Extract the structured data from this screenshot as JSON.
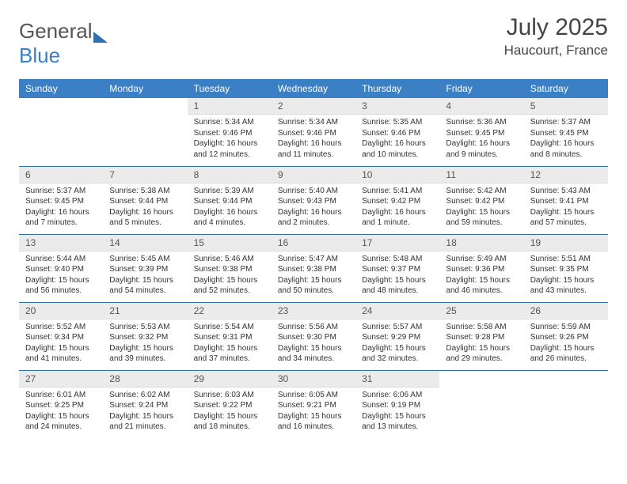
{
  "brand": {
    "part1": "General",
    "part2": "Blue"
  },
  "title": "July 2025",
  "location": "Haucourt, France",
  "colors": {
    "header_bg": "#3b7fc4",
    "header_text": "#ffffff",
    "daynum_bg": "#ebebeb",
    "row_border": "#2f6fb3",
    "body_text": "#333333",
    "title_text": "#444444"
  },
  "dayNames": [
    "Sunday",
    "Monday",
    "Tuesday",
    "Wednesday",
    "Thursday",
    "Friday",
    "Saturday"
  ],
  "startOffset": 2,
  "days": [
    {
      "n": 1,
      "sunrise": "5:34 AM",
      "sunset": "9:46 PM",
      "daylight": "16 hours and 12 minutes."
    },
    {
      "n": 2,
      "sunrise": "5:34 AM",
      "sunset": "9:46 PM",
      "daylight": "16 hours and 11 minutes."
    },
    {
      "n": 3,
      "sunrise": "5:35 AM",
      "sunset": "9:46 PM",
      "daylight": "16 hours and 10 minutes."
    },
    {
      "n": 4,
      "sunrise": "5:36 AM",
      "sunset": "9:45 PM",
      "daylight": "16 hours and 9 minutes."
    },
    {
      "n": 5,
      "sunrise": "5:37 AM",
      "sunset": "9:45 PM",
      "daylight": "16 hours and 8 minutes."
    },
    {
      "n": 6,
      "sunrise": "5:37 AM",
      "sunset": "9:45 PM",
      "daylight": "16 hours and 7 minutes."
    },
    {
      "n": 7,
      "sunrise": "5:38 AM",
      "sunset": "9:44 PM",
      "daylight": "16 hours and 5 minutes."
    },
    {
      "n": 8,
      "sunrise": "5:39 AM",
      "sunset": "9:44 PM",
      "daylight": "16 hours and 4 minutes."
    },
    {
      "n": 9,
      "sunrise": "5:40 AM",
      "sunset": "9:43 PM",
      "daylight": "16 hours and 2 minutes."
    },
    {
      "n": 10,
      "sunrise": "5:41 AM",
      "sunset": "9:42 PM",
      "daylight": "16 hours and 1 minute."
    },
    {
      "n": 11,
      "sunrise": "5:42 AM",
      "sunset": "9:42 PM",
      "daylight": "15 hours and 59 minutes."
    },
    {
      "n": 12,
      "sunrise": "5:43 AM",
      "sunset": "9:41 PM",
      "daylight": "15 hours and 57 minutes."
    },
    {
      "n": 13,
      "sunrise": "5:44 AM",
      "sunset": "9:40 PM",
      "daylight": "15 hours and 56 minutes."
    },
    {
      "n": 14,
      "sunrise": "5:45 AM",
      "sunset": "9:39 PM",
      "daylight": "15 hours and 54 minutes."
    },
    {
      "n": 15,
      "sunrise": "5:46 AM",
      "sunset": "9:38 PM",
      "daylight": "15 hours and 52 minutes."
    },
    {
      "n": 16,
      "sunrise": "5:47 AM",
      "sunset": "9:38 PM",
      "daylight": "15 hours and 50 minutes."
    },
    {
      "n": 17,
      "sunrise": "5:48 AM",
      "sunset": "9:37 PM",
      "daylight": "15 hours and 48 minutes."
    },
    {
      "n": 18,
      "sunrise": "5:49 AM",
      "sunset": "9:36 PM",
      "daylight": "15 hours and 46 minutes."
    },
    {
      "n": 19,
      "sunrise": "5:51 AM",
      "sunset": "9:35 PM",
      "daylight": "15 hours and 43 minutes."
    },
    {
      "n": 20,
      "sunrise": "5:52 AM",
      "sunset": "9:34 PM",
      "daylight": "15 hours and 41 minutes."
    },
    {
      "n": 21,
      "sunrise": "5:53 AM",
      "sunset": "9:32 PM",
      "daylight": "15 hours and 39 minutes."
    },
    {
      "n": 22,
      "sunrise": "5:54 AM",
      "sunset": "9:31 PM",
      "daylight": "15 hours and 37 minutes."
    },
    {
      "n": 23,
      "sunrise": "5:56 AM",
      "sunset": "9:30 PM",
      "daylight": "15 hours and 34 minutes."
    },
    {
      "n": 24,
      "sunrise": "5:57 AM",
      "sunset": "9:29 PM",
      "daylight": "15 hours and 32 minutes."
    },
    {
      "n": 25,
      "sunrise": "5:58 AM",
      "sunset": "9:28 PM",
      "daylight": "15 hours and 29 minutes."
    },
    {
      "n": 26,
      "sunrise": "5:59 AM",
      "sunset": "9:26 PM",
      "daylight": "15 hours and 26 minutes."
    },
    {
      "n": 27,
      "sunrise": "6:01 AM",
      "sunset": "9:25 PM",
      "daylight": "15 hours and 24 minutes."
    },
    {
      "n": 28,
      "sunrise": "6:02 AM",
      "sunset": "9:24 PM",
      "daylight": "15 hours and 21 minutes."
    },
    {
      "n": 29,
      "sunrise": "6:03 AM",
      "sunset": "9:22 PM",
      "daylight": "15 hours and 18 minutes."
    },
    {
      "n": 30,
      "sunrise": "6:05 AM",
      "sunset": "9:21 PM",
      "daylight": "15 hours and 16 minutes."
    },
    {
      "n": 31,
      "sunrise": "6:06 AM",
      "sunset": "9:19 PM",
      "daylight": "15 hours and 13 minutes."
    }
  ],
  "labels": {
    "sunrise": "Sunrise:",
    "sunset": "Sunset:",
    "daylight": "Daylight:"
  }
}
